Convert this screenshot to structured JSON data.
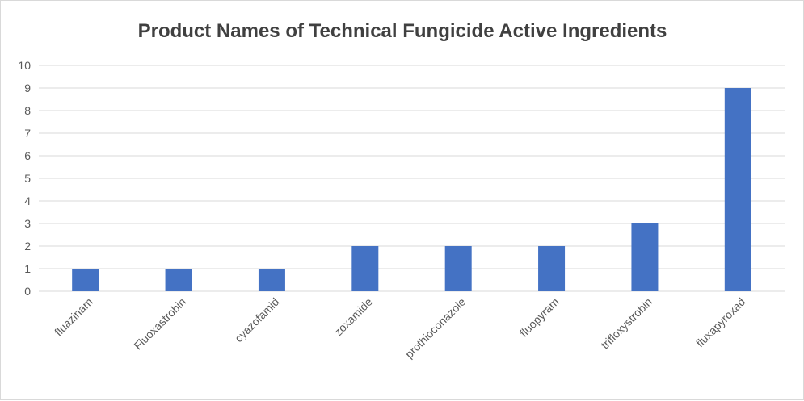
{
  "chart_data": {
    "type": "bar",
    "title": "Product Names of Technical Fungicide Active Ingredients",
    "xlabel": "",
    "ylabel": "",
    "categories": [
      "fluazinam",
      "Fluoxastrobin",
      "cyazofamid",
      "zoxamide",
      "prothioconazole",
      "fluopyram",
      "trifloxystrobin",
      "fluxapyroxad"
    ],
    "values": [
      1,
      1,
      1,
      2,
      2,
      2,
      3,
      9
    ],
    "ylim": [
      0,
      10
    ],
    "yticks": [
      0,
      1,
      2,
      3,
      4,
      5,
      6,
      7,
      8,
      9,
      10
    ],
    "grid": true,
    "legend": "none",
    "bar_color": "#4472C4"
  }
}
